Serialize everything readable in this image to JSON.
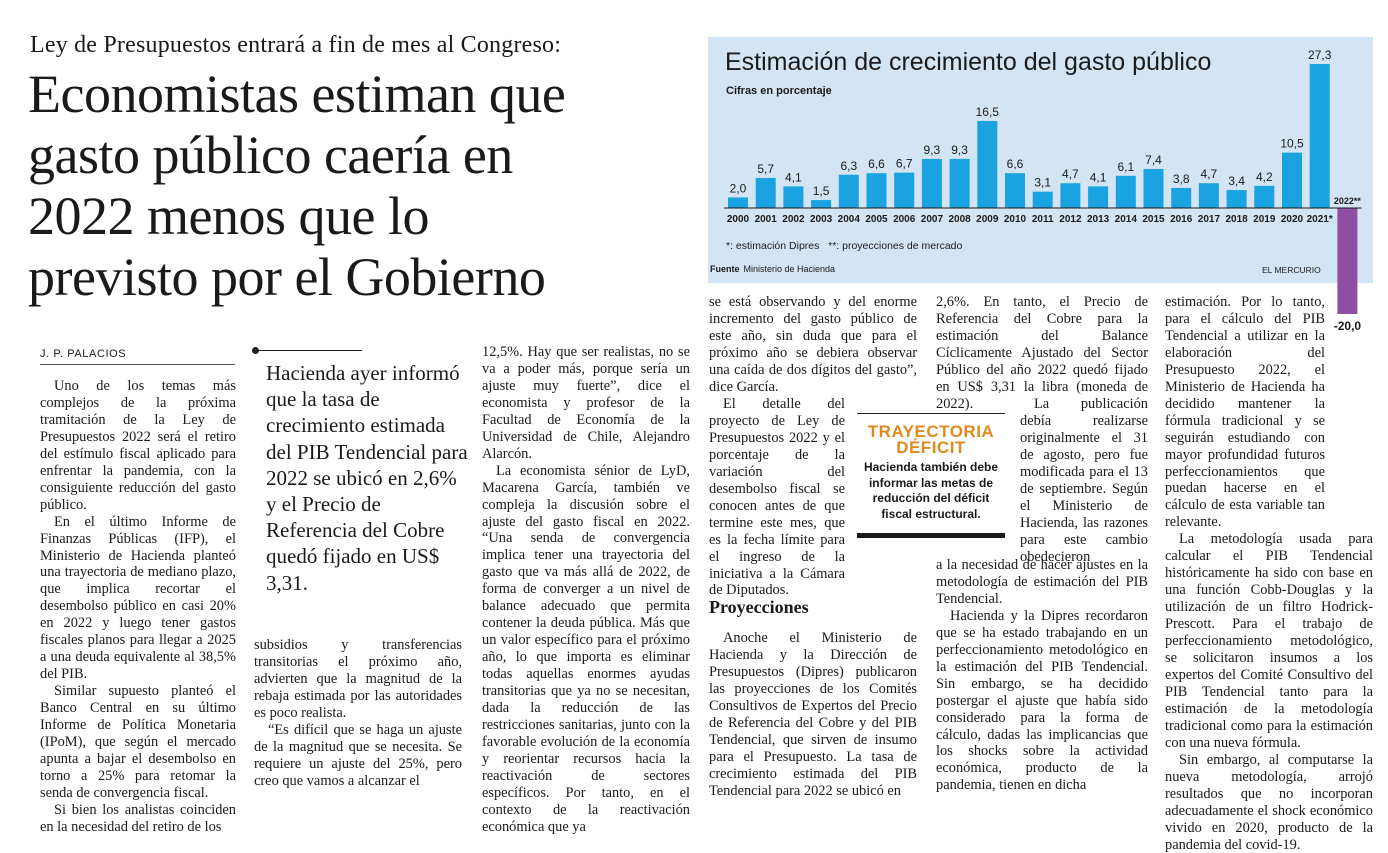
{
  "kicker": "Ley de Presupuestos entrará a fin de mes al Congreso:",
  "headline": {
    "lines": [
      "Economistas estiman que",
      "gasto público caería en",
      "2022 menos que lo",
      "previsto por el Gobierno"
    ]
  },
  "byline": "J. P. PALACIOS",
  "pull_quote": "Hacienda ayer informó que la tasa de crecimiento estimada del PIB Tendencial para 2022 se ubicó en 2,6% y el Precio de Referencia del Cobre quedó fijado en US$ 3,31.",
  "chart": {
    "title": "Estimación de crecimiento del gasto público",
    "subtitle": "Cifras en porcentaje",
    "note": "*: estimación Dipres   **: proyecciones de mercado",
    "source_label": "Fuente",
    "source": "Ministerio de Hacienda",
    "credit": "EL MERCURIO",
    "colors": {
      "bar": "#1aa3e0",
      "negative_bar": "#8e4fa3",
      "background": "#d3e4f4"
    }
  },
  "chart_data": {
    "type": "bar",
    "categories": [
      "2000",
      "2001",
      "2002",
      "2003",
      "2004",
      "2005",
      "2006",
      "2007",
      "2008",
      "2009",
      "2010",
      "2011",
      "2012",
      "2013",
      "2014",
      "2015",
      "2016",
      "2017",
      "2018",
      "2019",
      "2020",
      "2021*",
      "2022**"
    ],
    "values": [
      2.0,
      5.7,
      4.1,
      1.5,
      6.3,
      6.6,
      6.7,
      9.3,
      9.3,
      16.5,
      6.6,
      3.1,
      4.7,
      4.1,
      6.1,
      7.4,
      3.8,
      4.7,
      3.4,
      4.2,
      10.5,
      27.3,
      -20.0
    ],
    "labels": [
      "2,0",
      "5,7",
      "4,1",
      "1,5",
      "6,3",
      "6,6",
      "6,7",
      "9,3",
      "9,3",
      "16,5",
      "6,6",
      "3,1",
      "4,7",
      "4,1",
      "6,1",
      "7,4",
      "3,8",
      "4,7",
      "3,4",
      "4,2",
      "10,5",
      "27,3",
      "-20,0"
    ],
    "title": "Estimación de crecimiento del gasto público",
    "subtitle": "Cifras en porcentaje",
    "ylim": [
      -20,
      27.3
    ]
  },
  "sidebar": {
    "title_lines": [
      "TRAYECTORIA",
      "DÉFICIT"
    ],
    "text": "Hacienda también debe informar las metas de reducción del déficit fiscal estructural."
  },
  "col1": {
    "paras": [
      "Uno de los temas más complejos de la próxima tramitación de la Ley de Presupuestos 2022 será el retiro del estímulo fiscal aplicado para enfrentar la pandemia, con la consiguiente reducción del gasto público.",
      "En el último Informe de Finanzas Públicas (IFP), el Ministerio de Hacienda planteó una trayectoria de mediano plazo, que implica recortar el desembolso público en casi 20% en 2022 y luego tener gastos fiscales planos para llegar a 2025 a una deuda equivalente al 38,5% del PIB.",
      "Similar supuesto planteó el Banco Central en su último Informe de Política Monetaria (IPoM), que según el mercado apunta a bajar el desembolso en torno a 25% para retomar la senda de convergencia fiscal.",
      "Si bien los analistas coinciden en la necesidad del retiro de los"
    ]
  },
  "col2": {
    "paras": [
      "subsidios y transferencias transitorias el próximo año, advierten que la magnitud de la rebaja estimada por las autoridades es poco realista.",
      "“Es difícil que se haga un ajuste de la magnitud que se necesita. Se requiere un ajuste del 25%, pero creo que vamos a alcanzar el"
    ]
  },
  "col3": {
    "paras": [
      "12,5%. Hay que ser realistas, no se va a poder más, porque sería un ajuste muy fuerte”, dice el economista y profesor de la Facultad de Economía de la Universidad de Chile, Alejandro Alarcón.",
      "La economista sénior de LyD, Macarena García, también ve compleja la discusión sobre el ajuste del gasto fiscal en 2022. “Una senda de convergencia implica tener una trayectoria del gasto que va más allá de 2022, de forma de converger a un nivel de balance adecuado que permita contener la deuda pública. Más que un valor específico para el próximo año, lo que importa es eliminar todas aquellas enormes ayudas transitorias que ya no se necesitan, dada la reducción de las restricciones sanitarias, junto con la favorable evolución de la economía y reorientar recursos hacia la reactivación de sectores específicos. Por tanto, en el contexto de la reactivación económica que ya"
    ]
  },
  "col4": {
    "top": "se está observando y del enorme incremento del gasto público de este año, sin duda que para el próximo año se debiera observar una caída de dos dígitos del gasto”, dice García.",
    "wrap": "El detalle del proyecto de Ley de Presupuestos 2022 y el porcentaje de la variación del desembolso fiscal se conocen antes de que termine este mes, que es la fecha límite para el ingreso de la iniciativa a la Cámara de Diputados.",
    "heading": "Proyecciones",
    "para": "Anoche el Ministerio de Hacienda y la Dirección de Presupuestos (Dipres) publicaron las proyecciones de los Comités Consultivos de Expertos del Precio de Referencia del Cobre y del PIB Tendencial, que sirven de insumo para el Presupuesto. La tasa de crecimiento estimada del PIB Tendencial para 2022 se ubicó en"
  },
  "col5": {
    "top": "2,6%. En tanto, el Precio de Referencia del Cobre para la estimación del Balance Cíclicamente Ajustado del Sector Público del año 2022 quedó fijado en US$ 3,31 la libra (moneda de 2022).",
    "wrap": "La publicación debía realizarse originalmente el 31 de agosto, pero fue modificada para el 13 de septiembre. Según el Ministerio de Hacienda, las razones para este cambio obedecieron",
    "rest": [
      "a la necesidad de hacer ajustes en la metodología de estimación del PIB Tendencial.",
      "Hacienda y la Dipres recordaron que se ha estado trabajando en un perfeccionamiento metodológico en la estimación del PIB Tendencial. Sin embargo, se ha decidido postergar el ajuste que había sido considerado para la forma de cálculo, dadas las implicancias que los shocks sobre la actividad económica, producto de la pandemia, tienen en dicha"
    ]
  },
  "col6": {
    "paras": [
      "estimación. Por lo tanto, para el cálculo del PIB Tendencial a utilizar en la elaboración del Presupuesto 2022, el Ministerio de Hacienda ha decidido mantener la fórmula tradicional y se seguirán estudiando con mayor profundidad futuros perfeccionamientos que puedan hacerse en el cálculo de esta variable tan relevante.",
      "La metodología usada para calcular el PIB Tendencial históricamente ha sido con base en una función Cobb-Douglas y la utilización de un filtro Hodrick-Prescott. Para el trabajo de perfeccionamiento metodológico, se solicitaron insumos a los expertos del Comité Consultivo del PIB Tendencial tanto para la estimación de la metodología tradicional como para la estimación con una nueva fórmula.",
      "Sin embargo, al computarse la nueva metodología, arrojó resultados que no incorporan adecuadamente el shock económico vivido en 2020, producto de la pandemia del covid-19."
    ]
  }
}
